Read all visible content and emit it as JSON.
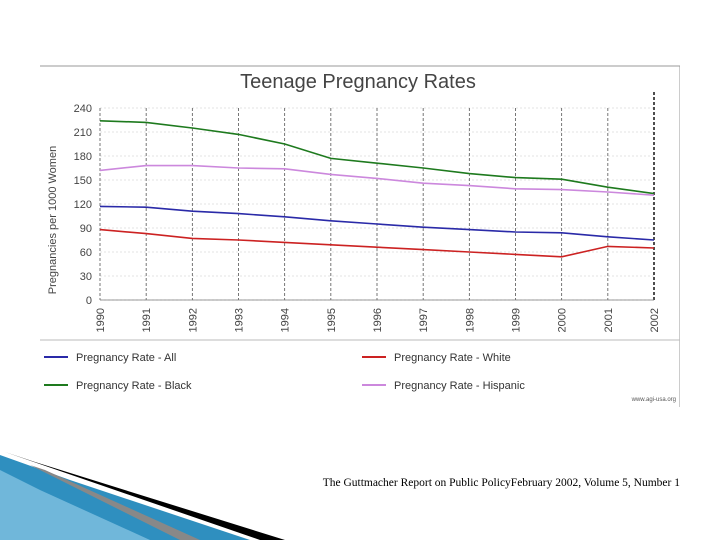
{
  "colors": {
    "all": "#2a2aa8",
    "white": "#cc2222",
    "black": "#1e7a1e",
    "hispanic": "#cc88dd",
    "axis": "#000000",
    "grid": "#c8c8c8",
    "accent_blue": "#2f8fbf"
  },
  "chart_data": {
    "type": "line",
    "title": "Teenage Pregnancy Rates",
    "xlabel": "",
    "ylabel": "Pregnancies per 1000 Women",
    "ylim": [
      0,
      240
    ],
    "yticks": [
      0,
      30,
      60,
      90,
      120,
      150,
      180,
      210,
      240
    ],
    "x": [
      "1990",
      "1991",
      "1992",
      "1993",
      "1994",
      "1995",
      "1996",
      "1997",
      "1998",
      "1999",
      "2000",
      "2001",
      "2002"
    ],
    "series": [
      {
        "name": "Pregnancy Rate - All",
        "color_key": "all",
        "values": [
          117,
          116,
          111,
          108,
          104,
          99,
          95,
          91,
          88,
          85,
          84,
          79,
          75
        ]
      },
      {
        "name": "Pregnancy Rate - White",
        "color_key": "white",
        "values": [
          88,
          83,
          77,
          75,
          72,
          69,
          66,
          63,
          60,
          57,
          54,
          67,
          65
        ]
      },
      {
        "name": "Pregnancy Rate - Black",
        "color_key": "black",
        "values": [
          224,
          222,
          215,
          207,
          195,
          177,
          171,
          165,
          158,
          153,
          151,
          141,
          133
        ]
      },
      {
        "name": "Pregnancy Rate - Hispanic",
        "color_key": "hispanic",
        "values": [
          162,
          168,
          168,
          165,
          164,
          157,
          152,
          146,
          143,
          139,
          138,
          135,
          131
        ]
      }
    ],
    "watermark": "www.agi-usa.org"
  },
  "caption": "The Guttmacher Report on Public PolicyFebruary 2002, Volume 5, Number 1"
}
